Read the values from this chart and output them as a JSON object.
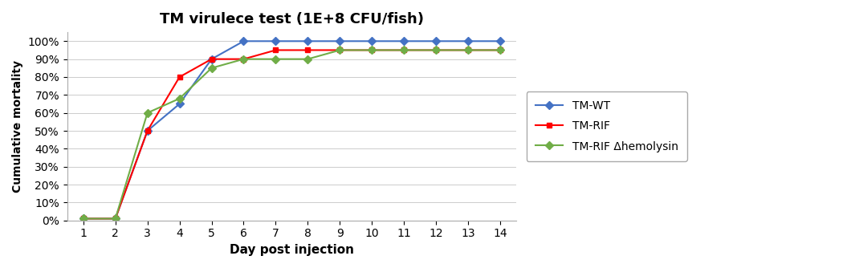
{
  "title": "TM virulece test (1E+8 CFU/fish)",
  "xlabel": "Day post injection",
  "ylabel": "Cumulative mortality",
  "days": [
    1,
    2,
    3,
    4,
    5,
    6,
    7,
    8,
    9,
    10,
    11,
    12,
    13,
    14
  ],
  "TM_WT": [
    0.01,
    0.01,
    0.5,
    0.65,
    0.9,
    1.0,
    1.0,
    1.0,
    1.0,
    1.0,
    1.0,
    1.0,
    1.0,
    1.0
  ],
  "TM_RIF": [
    0.01,
    0.01,
    0.5,
    0.8,
    0.9,
    0.9,
    0.95,
    0.95,
    0.95,
    0.95,
    0.95,
    0.95,
    0.95,
    0.95
  ],
  "TM_RIF_Hemo": [
    0.01,
    0.01,
    0.6,
    0.68,
    0.85,
    0.9,
    0.9,
    0.9,
    0.95,
    0.95,
    0.95,
    0.95,
    0.95,
    0.95
  ],
  "color_WT": "#4472C4",
  "color_RIF": "#FF0000",
  "color_Hemo": "#70AD47",
  "legend_WT": "TM-WT",
  "legend_RIF": "TM-RIF",
  "legend_Hemo": "TM-RIF Δhemolysin",
  "bg_color": "#FFFFFF",
  "plot_bg": "#FFFFFF",
  "ylim": [
    0,
    1.05
  ],
  "xlim": [
    0.5,
    14.5
  ]
}
